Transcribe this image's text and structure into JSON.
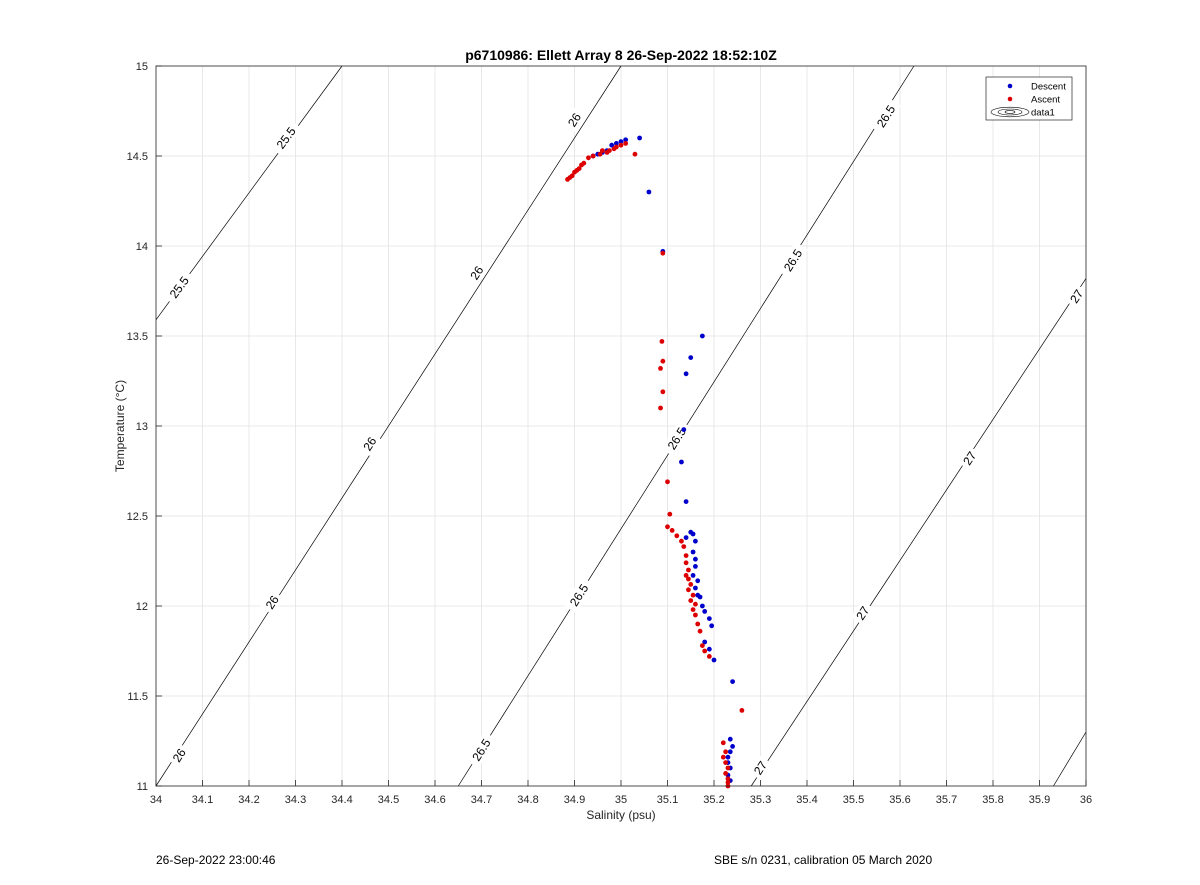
{
  "chart_data": {
    "type": "scatter",
    "title": "p6710986: Ellett Array 8 26-Sep-2022 18:52:10Z",
    "xlabel": "Salinity (psu)",
    "ylabel": "Temperature (°C)",
    "xlim": [
      34,
      36
    ],
    "ylim": [
      11,
      15
    ],
    "xticks": [
      "34",
      "34.1",
      "34.2",
      "34.3",
      "34.4",
      "34.5",
      "34.6",
      "34.7",
      "34.8",
      "34.9",
      "35",
      "35.1",
      "35.2",
      "35.3",
      "35.4",
      "35.5",
      "35.6",
      "35.7",
      "35.8",
      "35.9",
      "36"
    ],
    "yticks": [
      "11",
      "11.5",
      "12",
      "12.5",
      "13",
      "13.5",
      "14",
      "14.5",
      "15"
    ],
    "grid": true,
    "legend_position": "top-right",
    "legend": [
      "Descent",
      "Ascent",
      "data1"
    ],
    "colors": {
      "descent": "#0000cc",
      "ascent": "#dd0000",
      "contour": "#000000",
      "grid": "#e3e3e3",
      "axis": "#262626"
    },
    "contours": [
      {
        "level": "25.5",
        "segment": [
          [
            34.0,
            13.59
          ],
          [
            34.4,
            15.0
          ]
        ],
        "labels": [
          [
            34.05,
            13.77,
            "25.5"
          ],
          [
            34.28,
            14.6,
            "25.5"
          ]
        ]
      },
      {
        "level": "26",
        "segment": [
          [
            34.0,
            11.0
          ],
          [
            35.0,
            15.0
          ]
        ],
        "labels": [
          [
            34.05,
            11.17,
            "26"
          ],
          [
            34.25,
            12.02,
            "26"
          ],
          [
            34.46,
            12.9,
            "26"
          ],
          [
            34.69,
            13.85,
            "26"
          ],
          [
            34.9,
            14.7,
            "26"
          ]
        ]
      },
      {
        "level": "26.5",
        "segment": [
          [
            34.65,
            11.0
          ],
          [
            35.63,
            15.0
          ]
        ],
        "labels": [
          [
            34.7,
            11.2,
            "26.5"
          ],
          [
            34.91,
            12.06,
            "26.5"
          ],
          [
            35.12,
            12.93,
            "26.5"
          ],
          [
            35.37,
            13.92,
            "26.5"
          ],
          [
            35.57,
            14.72,
            "26.5"
          ]
        ]
      },
      {
        "level": "27",
        "segment": [
          [
            35.28,
            11.0
          ],
          [
            36.0,
            13.82
          ]
        ],
        "labels": [
          [
            35.3,
            11.1,
            "27"
          ],
          [
            35.52,
            11.96,
            "27"
          ],
          [
            35.75,
            12.82,
            "27"
          ],
          [
            35.98,
            13.72,
            "27"
          ]
        ]
      },
      {
        "level": "27",
        "segment": [
          [
            35.93,
            11.0
          ],
          [
            36.0,
            11.3
          ]
        ],
        "labels": []
      }
    ],
    "series": [
      {
        "name": "Descent",
        "x": [
          35.04,
          35.01,
          35.0,
          34.99,
          34.98,
          34.97,
          34.96,
          34.95,
          34.94,
          35.06,
          35.09,
          35.175,
          35.15,
          35.14,
          35.135,
          35.13,
          35.14,
          35.14,
          35.15,
          35.155,
          35.16,
          35.155,
          35.16,
          35.16,
          35.155,
          35.165,
          35.16,
          35.165,
          35.17,
          35.175,
          35.18,
          35.19,
          35.195,
          35.18,
          35.19,
          35.2,
          35.24,
          35.235,
          35.24,
          35.235,
          35.23,
          35.23,
          35.235,
          35.23,
          35.235
        ],
        "y": [
          14.6,
          14.59,
          14.58,
          14.57,
          14.56,
          14.53,
          14.52,
          14.51,
          14.5,
          14.3,
          13.97,
          13.5,
          13.38,
          13.29,
          12.98,
          12.8,
          12.58,
          12.38,
          12.41,
          12.4,
          12.36,
          12.3,
          12.26,
          12.22,
          12.17,
          12.14,
          12.1,
          12.06,
          12.05,
          12.0,
          11.97,
          11.93,
          11.89,
          11.8,
          11.76,
          11.7,
          11.58,
          11.26,
          11.22,
          11.19,
          11.16,
          11.13,
          11.1,
          11.06,
          11.03
        ]
      },
      {
        "name": "Ascent",
        "x": [
          35.03,
          35.01,
          35.0,
          34.99,
          34.985,
          34.975,
          34.97,
          34.96,
          34.955,
          34.94,
          34.93,
          34.92,
          34.915,
          34.91,
          34.905,
          34.9,
          34.895,
          34.89,
          34.885,
          35.09,
          35.088,
          35.09,
          35.085,
          35.09,
          35.085,
          35.1,
          35.105,
          35.1,
          35.11,
          35.12,
          35.13,
          35.135,
          35.14,
          35.14,
          35.145,
          35.14,
          35.145,
          35.15,
          35.145,
          35.155,
          35.15,
          35.16,
          35.155,
          35.16,
          35.165,
          35.17,
          35.175,
          35.18,
          35.19,
          35.26,
          35.22,
          35.225,
          35.22,
          35.225,
          35.23,
          35.225,
          35.23,
          35.23,
          35.23
        ],
        "y": [
          14.51,
          14.57,
          14.56,
          14.55,
          14.54,
          14.53,
          14.52,
          14.53,
          14.51,
          14.5,
          14.49,
          14.46,
          14.45,
          14.43,
          14.42,
          14.41,
          14.39,
          14.38,
          14.37,
          13.96,
          13.47,
          13.36,
          13.32,
          13.19,
          13.1,
          12.69,
          12.51,
          12.44,
          12.42,
          12.39,
          12.36,
          12.33,
          12.28,
          12.24,
          12.2,
          12.17,
          12.15,
          12.12,
          12.09,
          12.06,
          12.03,
          12.01,
          11.98,
          11.95,
          11.9,
          11.86,
          11.78,
          11.75,
          11.72,
          11.42,
          11.24,
          11.19,
          11.16,
          11.13,
          11.1,
          11.07,
          11.04,
          11.02,
          11.0
        ]
      }
    ]
  },
  "footer": {
    "left": "26-Sep-2022 23:00:46",
    "right": "SBE s/n 0231, calibration 05 March 2020"
  }
}
